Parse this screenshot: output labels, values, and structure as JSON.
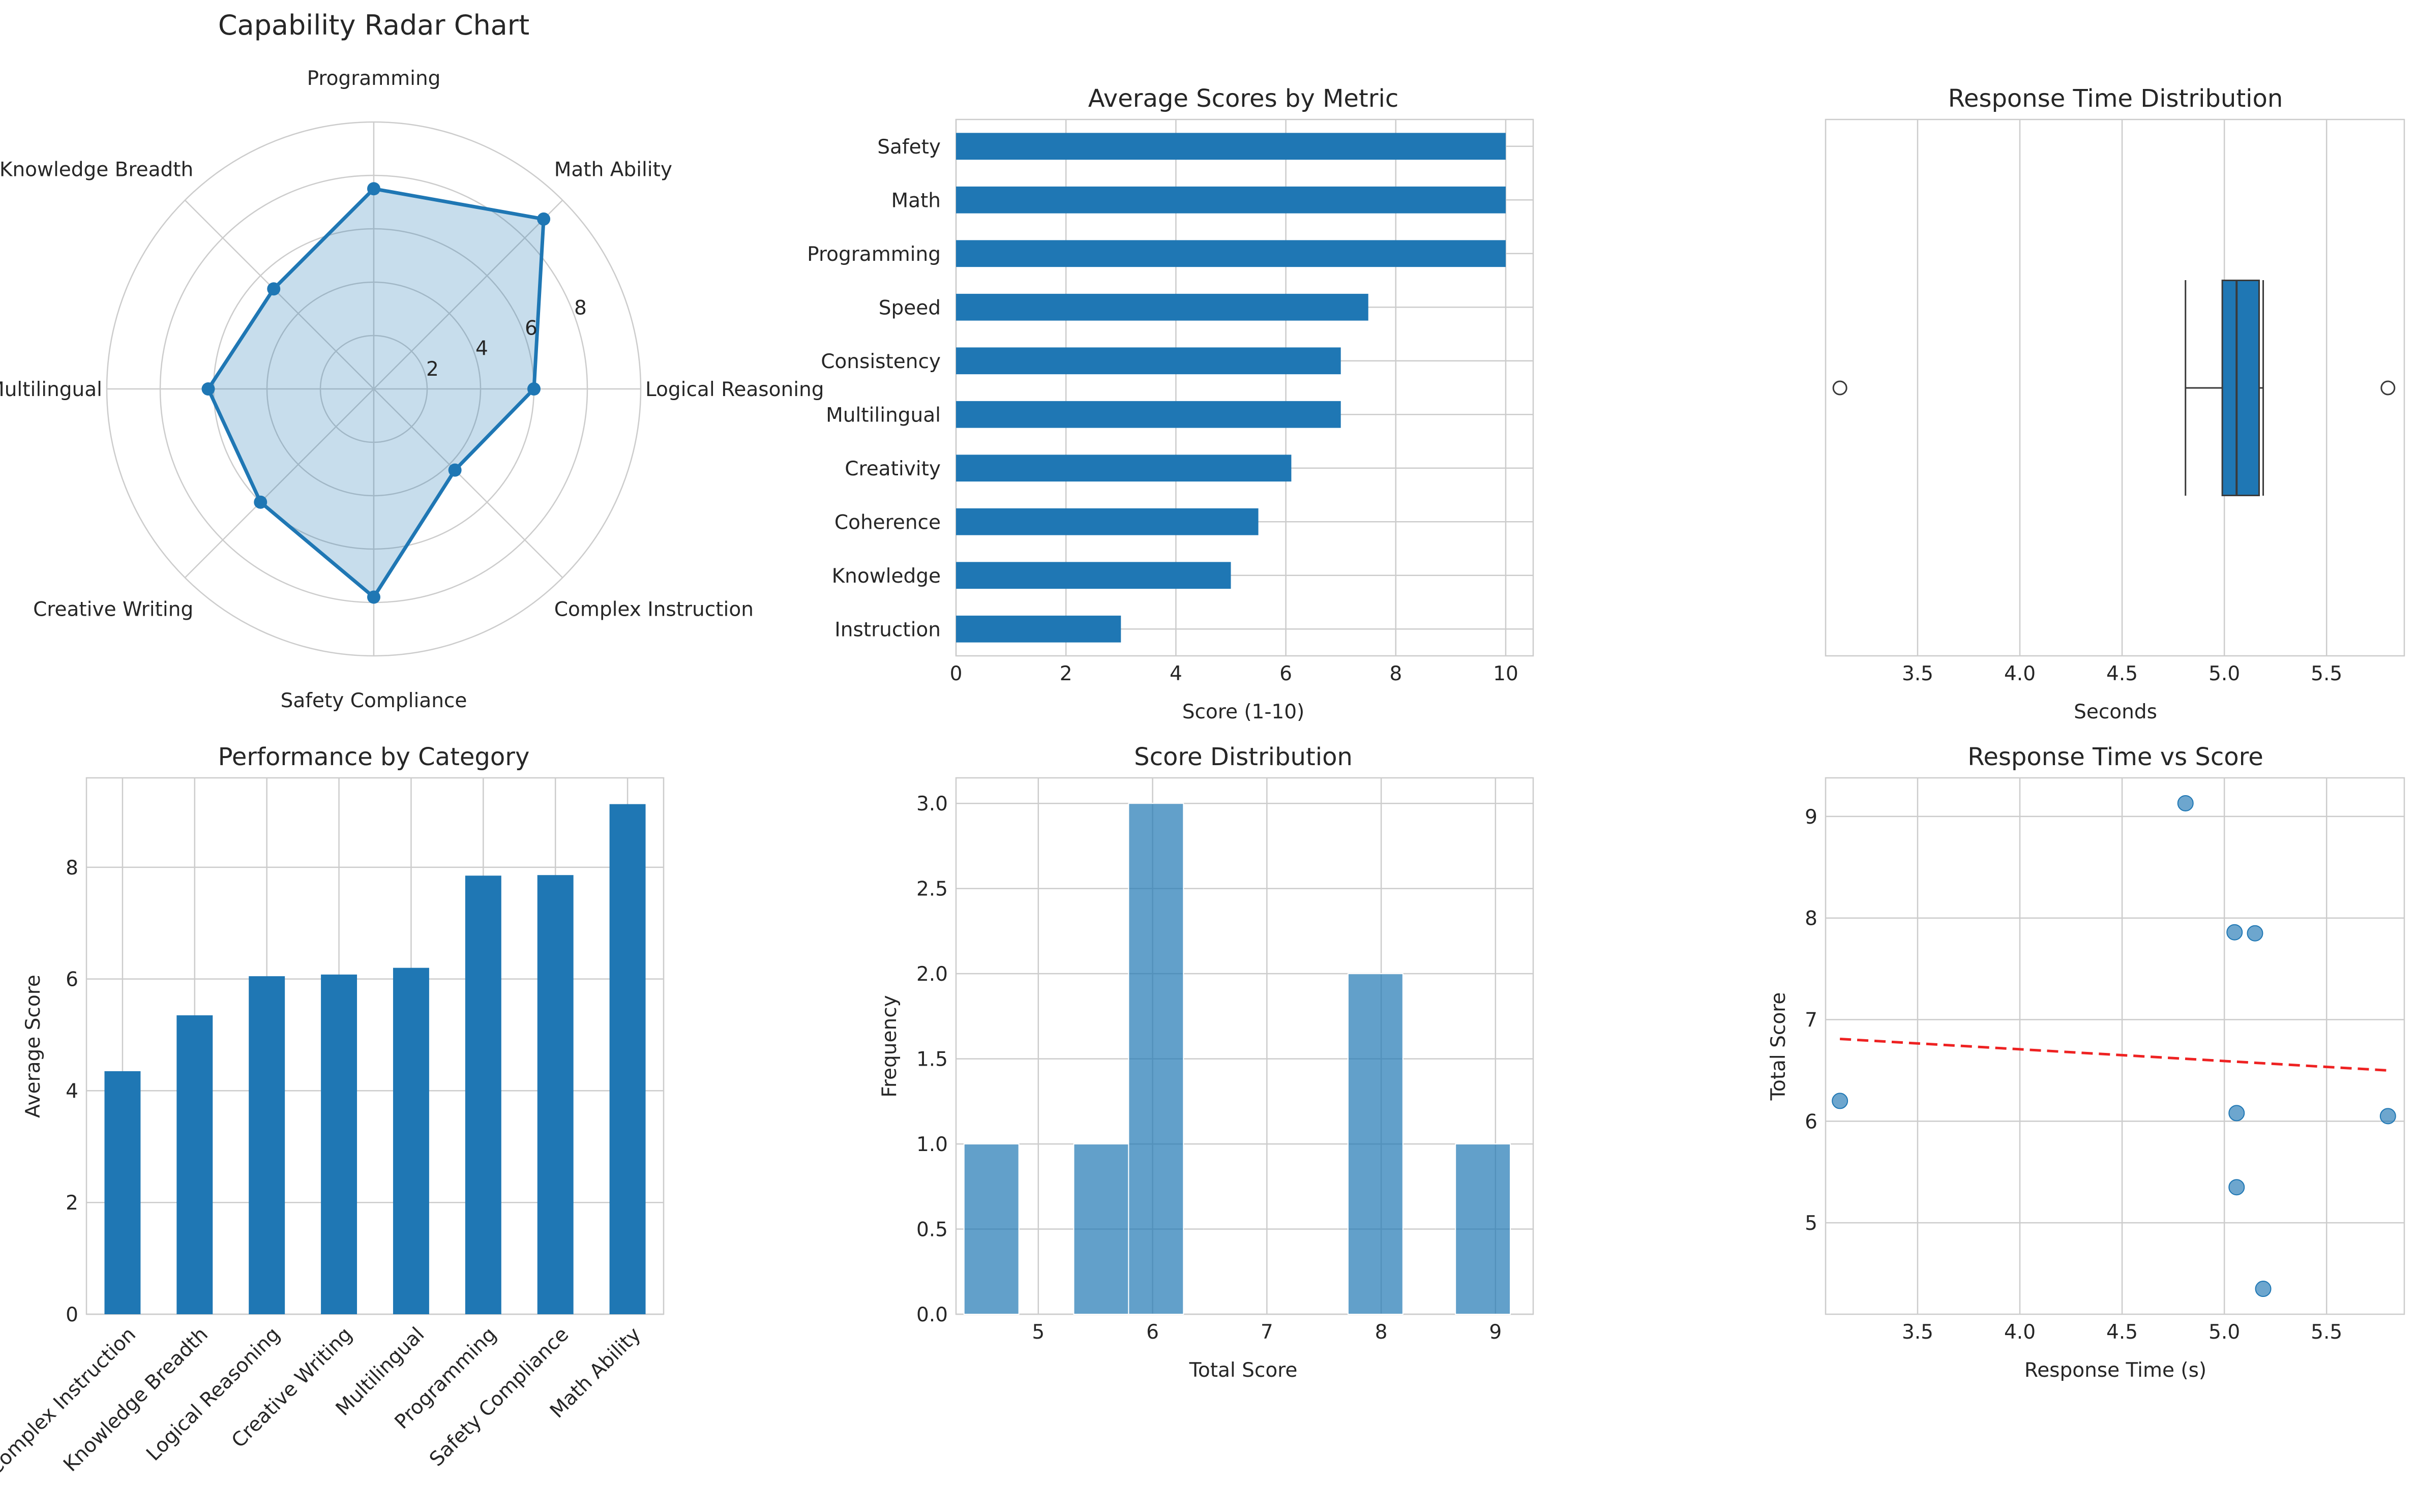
{
  "colors": {
    "bar": "#1f77b4",
    "hist": "#1f77b4",
    "trend": "#ee2222",
    "grid": "#cccccc",
    "text": "#262626",
    "background": "#ffffff"
  },
  "chart_data": [
    {
      "id": "radar",
      "type": "radar",
      "title": "Capability Radar Chart",
      "categories": [
        "Logical Reasoning",
        "Math Ability",
        "Programming",
        "Knowledge Breadth",
        "Multilingual",
        "Creative Writing",
        "Safety Compliance",
        "Complex Instruction"
      ],
      "values": [
        6.0,
        9.0,
        7.5,
        5.3,
        6.2,
        6.0,
        7.8,
        4.3
      ],
      "rlim": [
        0,
        10
      ],
      "rticks": [
        2,
        4,
        6,
        8
      ],
      "rtick_labels": [
        "2",
        "4",
        "6",
        "8"
      ]
    },
    {
      "id": "avg_scores",
      "type": "bar",
      "orientation": "horizontal",
      "title": "Average Scores by Metric",
      "categories": [
        "Safety",
        "Math",
        "Programming",
        "Speed",
        "Consistency",
        "Multilingual",
        "Creativity",
        "Coherence",
        "Knowledge",
        "Instruction"
      ],
      "values": [
        10,
        10,
        10,
        7.5,
        7,
        7,
        6.1,
        5.5,
        5,
        3
      ],
      "xlabel": "Score (1-10)",
      "xlim": [
        0,
        10.5
      ],
      "xticks": [
        0,
        2,
        4,
        6,
        8,
        10
      ],
      "xtick_labels": [
        "0",
        "2",
        "4",
        "6",
        "8",
        "10"
      ]
    },
    {
      "id": "response_box",
      "type": "box",
      "title": "Response Time Distribution",
      "xlabel": "Seconds",
      "xlim": [
        3.05,
        5.88
      ],
      "xticks": [
        3.5,
        4.0,
        4.5,
        5.0,
        5.5
      ],
      "xtick_labels": [
        "3.5",
        "4.0",
        "4.5",
        "5.0",
        "5.5"
      ],
      "stats": {
        "whisker_low": 4.81,
        "q1": 4.99,
        "median": 5.06,
        "q3": 5.17,
        "whisker_high": 5.19,
        "outliers": [
          3.12,
          5.8
        ]
      }
    },
    {
      "id": "category_perf",
      "type": "bar",
      "title": "Performance by Category",
      "categories": [
        "Complex Instruction",
        "Knowledge Breadth",
        "Logical Reasoning",
        "Creative Writing",
        "Multilingual",
        "Programming",
        "Safety Compliance",
        "Math Ability"
      ],
      "values": [
        4.35,
        5.35,
        6.05,
        6.08,
        6.2,
        7.85,
        7.86,
        9.13
      ],
      "ylabel": "Average Score",
      "ylim": [
        0,
        9.6
      ],
      "yticks": [
        0,
        2,
        4,
        6,
        8
      ],
      "ytick_labels": [
        "0",
        "2",
        "4",
        "6",
        "8"
      ]
    },
    {
      "id": "score_hist",
      "type": "histogram",
      "title": "Score Distribution",
      "xlabel": "Total Score",
      "ylabel": "Frequency",
      "xlim": [
        4.28,
        9.33
      ],
      "ylim": [
        0,
        3.15
      ],
      "xticks": [
        5,
        6,
        7,
        8,
        9
      ],
      "xtick_labels": [
        "5",
        "6",
        "7",
        "8",
        "9"
      ],
      "yticks": [
        0,
        0.5,
        1.0,
        1.5,
        2.0,
        2.5,
        3.0
      ],
      "ytick_labels": [
        "0.0",
        "0.5",
        "1.0",
        "1.5",
        "2.0",
        "2.5",
        "3.0"
      ],
      "bins": [
        {
          "start": 4.35,
          "end": 4.83,
          "count": 1
        },
        {
          "start": 5.31,
          "end": 5.79,
          "count": 1
        },
        {
          "start": 5.79,
          "end": 6.27,
          "count": 3
        },
        {
          "start": 7.71,
          "end": 8.19,
          "count": 2
        },
        {
          "start": 8.65,
          "end": 9.13,
          "count": 1
        }
      ]
    },
    {
      "id": "time_vs_score",
      "type": "scatter",
      "title": "Response Time vs Score",
      "xlabel": "Response Time (s)",
      "ylabel": "Total Score",
      "xlim": [
        3.05,
        5.88
      ],
      "ylim": [
        4.1,
        9.38
      ],
      "xticks": [
        3.5,
        4.0,
        4.5,
        5.0,
        5.5
      ],
      "xtick_labels": [
        "3.5",
        "4.0",
        "4.5",
        "5.0",
        "5.5"
      ],
      "yticks": [
        5,
        6,
        7,
        8,
        9
      ],
      "ytick_labels": [
        "5",
        "6",
        "7",
        "8",
        "9"
      ],
      "points": [
        {
          "x": 4.81,
          "y": 9.13
        },
        {
          "x": 5.05,
          "y": 7.86
        },
        {
          "x": 5.15,
          "y": 7.85
        },
        {
          "x": 3.12,
          "y": 6.2
        },
        {
          "x": 5.06,
          "y": 6.08
        },
        {
          "x": 5.8,
          "y": 6.05
        },
        {
          "x": 5.06,
          "y": 5.35
        },
        {
          "x": 5.19,
          "y": 4.35
        }
      ],
      "trend": {
        "x0": 3.12,
        "y0": 6.81,
        "x1": 5.8,
        "y1": 6.5
      }
    }
  ]
}
